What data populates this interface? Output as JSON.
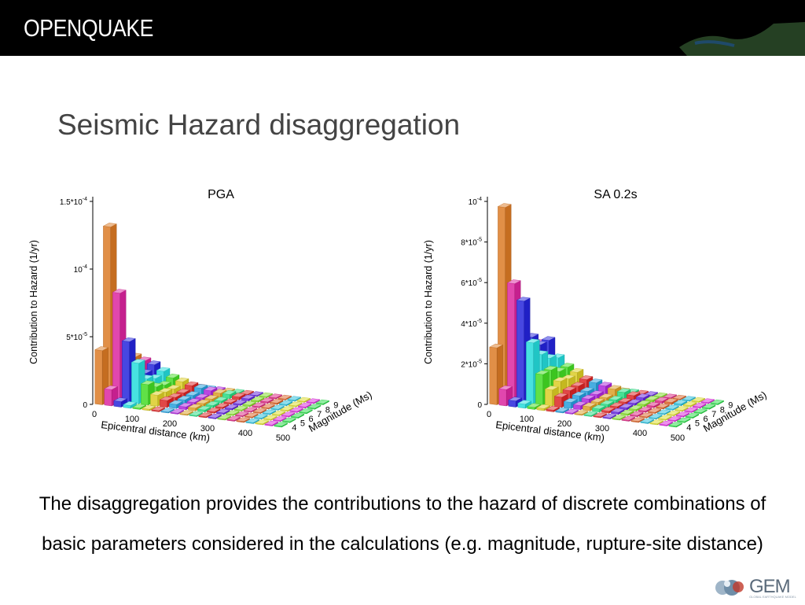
{
  "header": {
    "brand": "OPENQUAKE"
  },
  "slide": {
    "title": "Seismic Hazard disaggregation",
    "body": "The disaggregation provides the contributions to the hazard of discrete combinations of basic parameters considered in the calculations (e.g. magnitude, rupture-site distance)"
  },
  "logo": {
    "text": "GEM",
    "subtext": "GLOBAL EARTHQUAKE MODEL"
  },
  "colors": {
    "header_bg": "#000000",
    "title": "#444444",
    "body": "#000000"
  },
  "chart_data": [
    {
      "type": "bar",
      "title": "PGA",
      "ylabel": "Contribution to Hazard (1/yr)",
      "xlabel": "Epicentral distance (km)",
      "zlabel": "Magnitude (Ms)",
      "ylim": [
        0,
        0.00015
      ],
      "y_ticks": [
        {
          "value": 0,
          "label": "0"
        },
        {
          "value": 5e-05,
          "label": "5*10",
          "exp": "-5"
        },
        {
          "value": 0.0001,
          "label": "10",
          "exp": "-4"
        },
        {
          "value": 0.00015,
          "label": "1.5*10",
          "exp": "-4"
        }
      ],
      "x_ticks": [
        "0",
        "100",
        "200",
        "300",
        "400",
        "500"
      ],
      "z_ticks": [
        "4",
        "5",
        "6",
        "7",
        "8",
        "9"
      ],
      "distance_bins": [
        0,
        25,
        50,
        75,
        100,
        125,
        150,
        175,
        200,
        225,
        250,
        275,
        300,
        325,
        350,
        375,
        400,
        425,
        450,
        475
      ],
      "magnitude_bins": [
        4,
        5,
        6,
        7,
        8,
        9
      ],
      "series": [
        {
          "magnitude": 9,
          "values": [
            2e-06,
            2e-06,
            1.5e-06,
            1.2e-06,
            1e-06,
            1e-06,
            1e-06,
            8e-07,
            8e-07,
            6e-07,
            6e-07,
            5e-07,
            5e-07,
            4e-07,
            4e-07,
            3e-07,
            3e-07,
            3e-07,
            2e-07,
            2e-07
          ]
        },
        {
          "magnitude": 8,
          "values": [
            2.2e-05,
            2e-05,
            1.8e-05,
            1.4e-05,
            1e-05,
            8e-06,
            6e-06,
            5e-06,
            4e-06,
            3e-06,
            3e-06,
            2e-06,
            1.5e-06,
            1e-06,
            1e-06,
            1e-06,
            8e-07,
            6e-07,
            5e-07,
            5e-07
          ]
        },
        {
          "magnitude": 7,
          "values": [
            2e-05,
            1.6e-05,
            1.5e-05,
            1.2e-05,
            8e-06,
            6e-06,
            4e-06,
            3e-06,
            2e-06,
            2e-06,
            1.5e-06,
            1e-06,
            1e-06,
            1e-06,
            8e-07,
            6e-07,
            5e-07,
            4e-07,
            3e-07,
            3e-07
          ]
        },
        {
          "magnitude": 6,
          "values": [
            4.5e-05,
            3.5e-05,
            2.5e-05,
            1.5e-05,
            1e-05,
            7e-06,
            4e-06,
            3e-06,
            2e-06,
            2e-06,
            1.5e-06,
            1e-06,
            1e-06,
            8e-07,
            6e-07,
            5e-07,
            4e-07,
            3e-07,
            3e-07,
            2e-07
          ]
        },
        {
          "magnitude": 5,
          "values": [
            0.000128,
            8e-05,
            4.5e-05,
            3e-05,
            1.5e-05,
            8e-06,
            5e-06,
            3e-06,
            2e-06,
            2e-06,
            1.5e-06,
            1e-06,
            1e-06,
            8e-07,
            6e-07,
            5e-07,
            4e-07,
            3e-07,
            3e-07,
            2e-07
          ]
        },
        {
          "magnitude": 4,
          "values": [
            4e-05,
            1.2e-05,
            4e-06,
            2e-06,
            1e-06,
            1e-06,
            8e-07,
            6e-07,
            5e-07,
            4e-07,
            3e-07,
            3e-07,
            2e-07,
            2e-07,
            2e-07,
            1e-07,
            1e-07,
            1e-07,
            1e-07,
            1e-07
          ]
        }
      ]
    },
    {
      "type": "bar",
      "title": "SA 0.2s",
      "ylabel": "Contribution to Hazard (1/yr)",
      "xlabel": "Epicentral distance (km)",
      "zlabel": "Magnitude (Ms)",
      "ylim": [
        0,
        0.0001
      ],
      "y_ticks": [
        {
          "value": 0,
          "label": "0"
        },
        {
          "value": 2e-05,
          "label": "2*10",
          "exp": "-5"
        },
        {
          "value": 4e-05,
          "label": "4*10",
          "exp": "-5"
        },
        {
          "value": 6e-05,
          "label": "6*10",
          "exp": "-5"
        },
        {
          "value": 8e-05,
          "label": "8*10",
          "exp": "-5"
        },
        {
          "value": 0.0001,
          "label": "10",
          "exp": "-4"
        }
      ],
      "x_ticks": [
        "0",
        "100",
        "200",
        "300",
        "400",
        "500"
      ],
      "z_ticks": [
        "4",
        "5",
        "6",
        "7",
        "8",
        "9"
      ],
      "distance_bins": [
        0,
        25,
        50,
        75,
        100,
        125,
        150,
        175,
        200,
        225,
        250,
        275,
        300,
        325,
        350,
        375,
        400,
        425,
        450,
        475
      ],
      "magnitude_bins": [
        4,
        5,
        6,
        7,
        8,
        9
      ],
      "series": [
        {
          "magnitude": 9,
          "values": [
            2e-06,
            2e-06,
            1.8e-06,
            1.5e-06,
            1e-06,
            1e-06,
            1e-06,
            8e-07,
            8e-07,
            6e-07,
            6e-07,
            5e-07,
            5e-07,
            4e-07,
            4e-07,
            3e-07,
            3e-07,
            3e-07,
            2e-07,
            2e-07
          ]
        },
        {
          "magnitude": 8,
          "values": [
            2.2e-05,
            2.2e-05,
            2.4e-05,
            1.6e-05,
            1.2e-05,
            1e-05,
            7e-06,
            6e-06,
            5e-06,
            4e-06,
            3e-06,
            2e-06,
            1.5e-06,
            1e-06,
            1e-06,
            1e-06,
            8e-07,
            6e-07,
            5e-07,
            5e-07
          ]
        },
        {
          "magnitude": 7,
          "values": [
            2.6e-05,
            2.2e-05,
            2.4e-05,
            1.8e-05,
            1.2e-05,
            9e-06,
            6e-06,
            4e-06,
            3e-06,
            2e-06,
            1.5e-06,
            1e-06,
            1e-06,
            1e-06,
            8e-07,
            6e-07,
            5e-07,
            4e-07,
            3e-07,
            3e-07
          ]
        },
        {
          "magnitude": 6,
          "values": [
            3.5e-05,
            3.5e-05,
            3e-05,
            2.2e-05,
            1.5e-05,
            1e-05,
            6e-06,
            4e-06,
            3e-06,
            2e-06,
            1.5e-06,
            1e-06,
            1e-06,
            8e-07,
            6e-07,
            5e-07,
            4e-07,
            3e-07,
            3e-07,
            2e-07
          ]
        },
        {
          "magnitude": 5,
          "values": [
            9.5e-05,
            5.8e-05,
            5e-05,
            3e-05,
            1.5e-05,
            8e-06,
            5e-06,
            3e-06,
            2e-06,
            2e-06,
            1.5e-06,
            1e-06,
            1e-06,
            8e-07,
            6e-07,
            5e-07,
            4e-07,
            3e-07,
            3e-07,
            2e-07
          ]
        },
        {
          "magnitude": 4,
          "values": [
            2.8e-05,
            8e-06,
            3e-06,
            2e-06,
            1e-06,
            1e-06,
            8e-07,
            6e-07,
            5e-07,
            4e-07,
            3e-07,
            3e-07,
            2e-07,
            2e-07,
            2e-07,
            1e-07,
            1e-07,
            1e-07,
            1e-07,
            1e-07
          ]
        }
      ]
    }
  ]
}
